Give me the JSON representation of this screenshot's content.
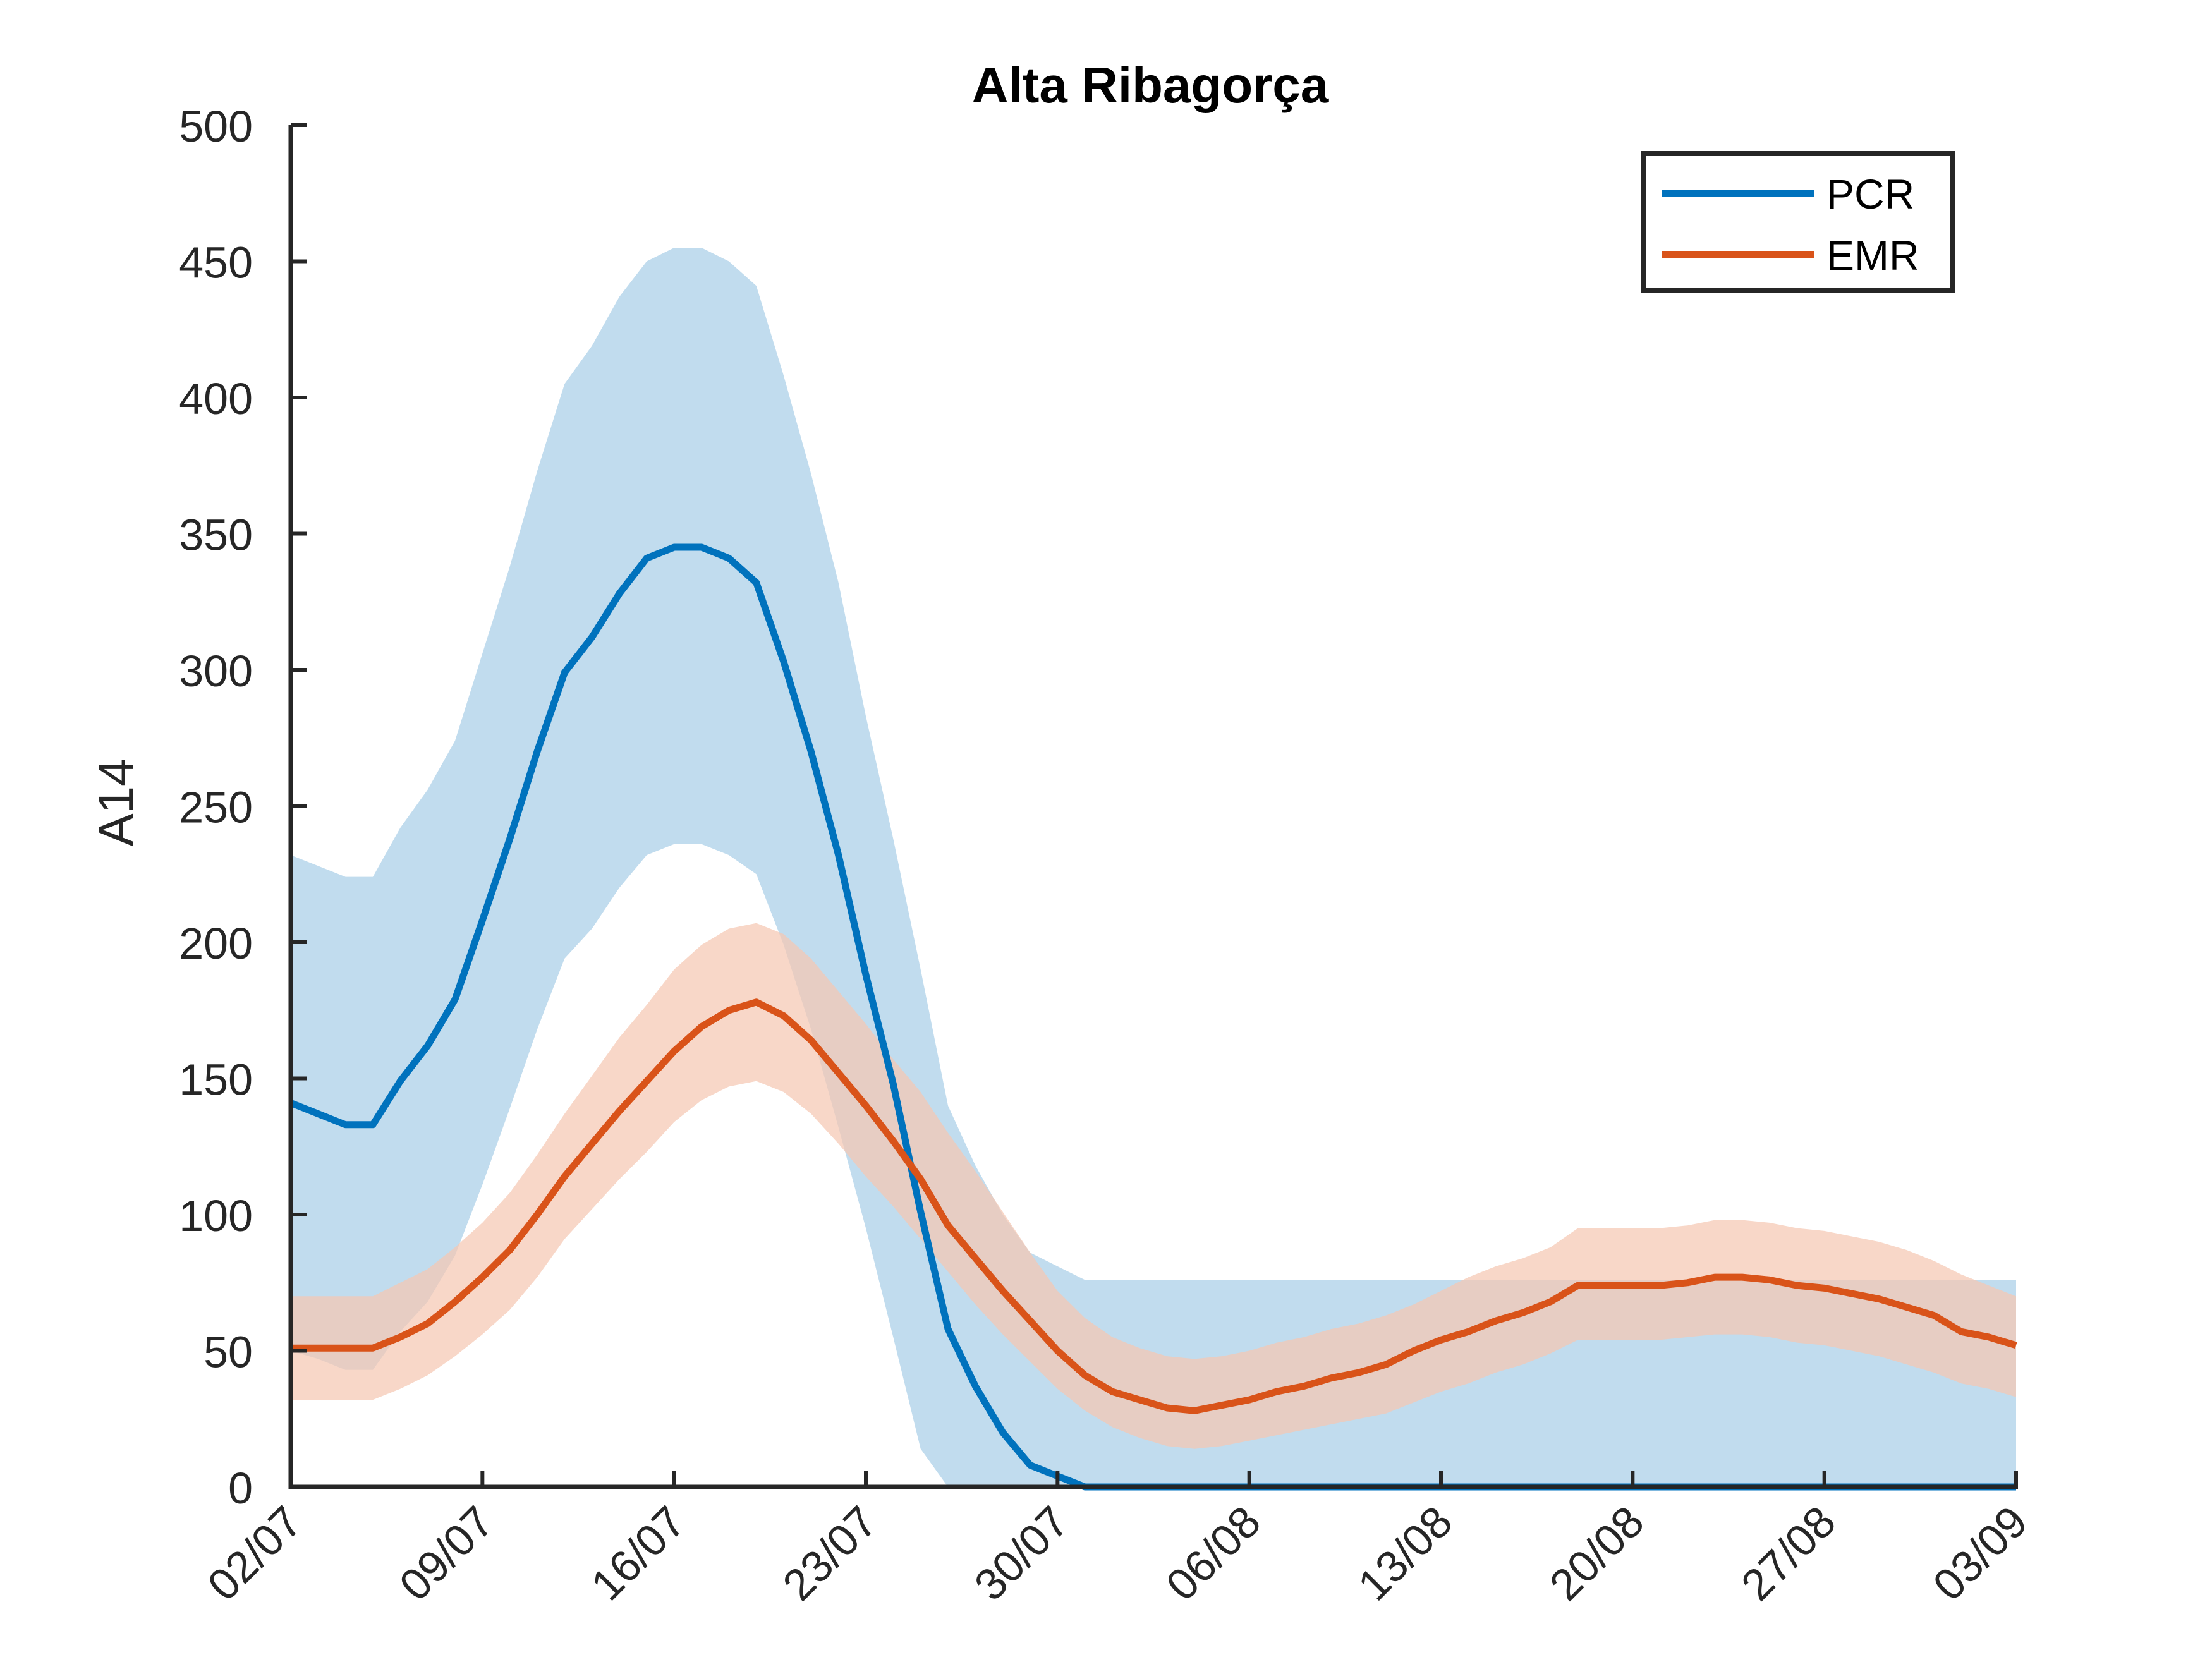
{
  "chart_data": {
    "type": "line",
    "title": "Alta Ribagorça",
    "xlabel": "",
    "ylabel": "A14",
    "ylim": [
      0,
      500
    ],
    "yticks": [
      0,
      50,
      100,
      150,
      200,
      250,
      300,
      350,
      400,
      450,
      500
    ],
    "x_start": "02/07",
    "x_end": "03/09",
    "xtick_labels": [
      "02/07",
      "09/07",
      "16/07",
      "23/07",
      "30/07",
      "06/08",
      "13/08",
      "20/08",
      "27/08",
      "03/09"
    ],
    "grid": false,
    "legend_position": "top-right",
    "x": [
      "02/07",
      "03/07",
      "04/07",
      "05/07",
      "06/07",
      "07/07",
      "08/07",
      "09/07",
      "10/07",
      "11/07",
      "12/07",
      "13/07",
      "14/07",
      "15/07",
      "16/07",
      "17/07",
      "18/07",
      "19/07",
      "20/07",
      "21/07",
      "22/07",
      "23/07",
      "24/07",
      "25/07",
      "26/07",
      "27/07",
      "28/07",
      "29/07",
      "30/07",
      "31/07",
      "01/08",
      "02/08",
      "03/08",
      "04/08",
      "05/08",
      "06/08",
      "07/08",
      "08/08",
      "09/08",
      "10/08",
      "11/08",
      "12/08",
      "13/08",
      "14/08",
      "15/08",
      "16/08",
      "17/08",
      "18/08",
      "19/08",
      "20/08",
      "21/08",
      "22/08",
      "23/08",
      "24/08",
      "25/08",
      "26/08",
      "27/08",
      "28/08",
      "29/08",
      "30/08",
      "31/08",
      "01/09",
      "02/09",
      "03/09"
    ],
    "series": [
      {
        "name": "PCR",
        "color": "#0072BD",
        "band_color": "#A9CFE8",
        "values": [
          141,
          137,
          133,
          133,
          149,
          162,
          179,
          208,
          238,
          270,
          299,
          312,
          328,
          341,
          345,
          345,
          341,
          332,
          303,
          270,
          232,
          188,
          148,
          101,
          58,
          37,
          20,
          8,
          4,
          0,
          0,
          0,
          0,
          0,
          0,
          0,
          0,
          0,
          0,
          0,
          0,
          0,
          0,
          0,
          0,
          0,
          0,
          0,
          0,
          0,
          0,
          0,
          0,
          0,
          0,
          0,
          0,
          0,
          0,
          0,
          0,
          0,
          0,
          0
        ],
        "upper": [
          232,
          228,
          224,
          224,
          242,
          256,
          274,
          306,
          338,
          373,
          405,
          419,
          437,
          450,
          455,
          455,
          450,
          441,
          408,
          372,
          332,
          283,
          238,
          190,
          140,
          118,
          100,
          86,
          81,
          76,
          76,
          76,
          76,
          76,
          76,
          76,
          76,
          76,
          76,
          76,
          76,
          76,
          76,
          76,
          76,
          76,
          76,
          76,
          76,
          76,
          76,
          76,
          76,
          76,
          76,
          76,
          76,
          76,
          76,
          76,
          76,
          76,
          76,
          76
        ],
        "lower": [
          50,
          47,
          43,
          43,
          57,
          68,
          85,
          111,
          139,
          168,
          194,
          205,
          220,
          232,
          236,
          236,
          232,
          225,
          199,
          168,
          132,
          95,
          55,
          14,
          0,
          0,
          0,
          0,
          0,
          0,
          0,
          0,
          0,
          0,
          0,
          0,
          0,
          0,
          0,
          0,
          0,
          0,
          0,
          0,
          0,
          0,
          0,
          0,
          0,
          0,
          0,
          0,
          0,
          0,
          0,
          0,
          0,
          0,
          0,
          0,
          0,
          0,
          0,
          0
        ]
      },
      {
        "name": "EMR",
        "color": "#D95319",
        "band_color": "#F5C7B3",
        "values": [
          51,
          51,
          51,
          51,
          55,
          60,
          68,
          77,
          87,
          100,
          114,
          126,
          138,
          149,
          160,
          169,
          175,
          178,
          173,
          164,
          152,
          140,
          127,
          113,
          96,
          84,
          72,
          61,
          50,
          41,
          35,
          32,
          29,
          28,
          30,
          32,
          35,
          37,
          40,
          42,
          45,
          50,
          54,
          57,
          61,
          64,
          68,
          74,
          74,
          74,
          74,
          75,
          77,
          77,
          76,
          74,
          73,
          71,
          69,
          66,
          63,
          57,
          55,
          52
        ],
        "upper": [
          70,
          70,
          70,
          70,
          75,
          80,
          88,
          97,
          108,
          122,
          137,
          151,
          165,
          177,
          190,
          199,
          205,
          207,
          203,
          194,
          182,
          170,
          157,
          145,
          130,
          116,
          101,
          86,
          72,
          62,
          55,
          51,
          48,
          47,
          48,
          50,
          53,
          55,
          58,
          60,
          63,
          67,
          72,
          77,
          81,
          84,
          88,
          95,
          95,
          95,
          95,
          96,
          98,
          98,
          97,
          95,
          94,
          92,
          90,
          87,
          83,
          78,
          74,
          70
        ],
        "lower": [
          32,
          32,
          32,
          32,
          36,
          41,
          48,
          56,
          65,
          77,
          91,
          102,
          113,
          123,
          134,
          142,
          147,
          149,
          145,
          137,
          126,
          114,
          103,
          91,
          79,
          67,
          56,
          46,
          36,
          28,
          22,
          18,
          15,
          14,
          15,
          17,
          19,
          21,
          23,
          25,
          27,
          31,
          35,
          38,
          42,
          45,
          49,
          54,
          54,
          54,
          54,
          55,
          56,
          56,
          55,
          53,
          52,
          50,
          48,
          45,
          42,
          38,
          36,
          33
        ]
      }
    ]
  }
}
